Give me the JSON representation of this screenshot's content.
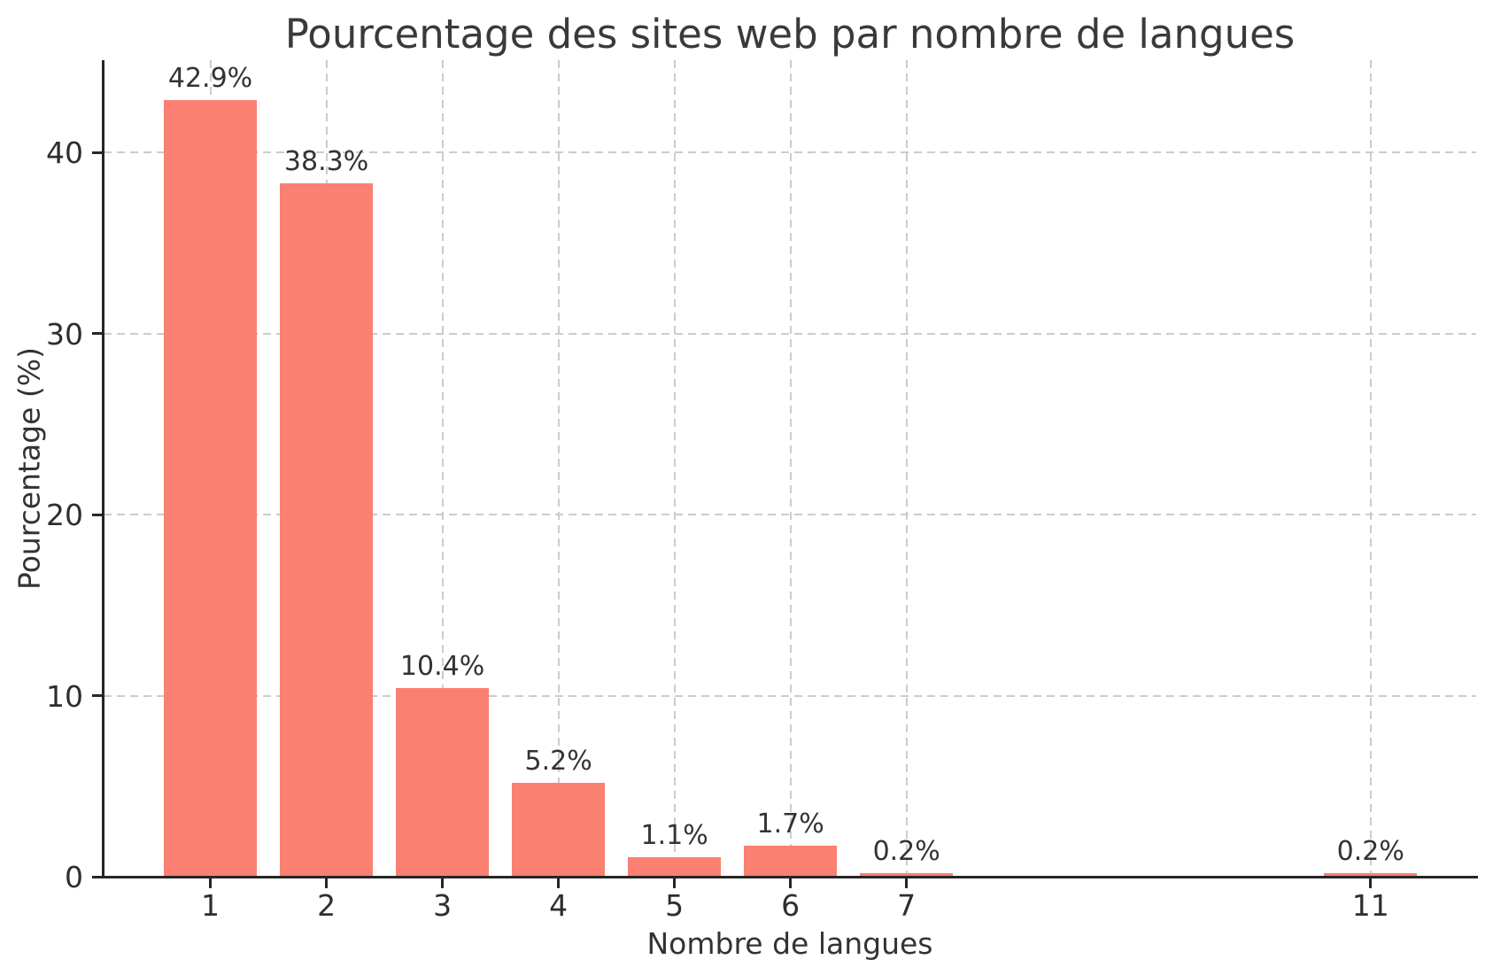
{
  "chart_data": {
    "type": "bar",
    "title": "Pourcentage des sites web par nombre de langues",
    "xlabel": "Nombre de langues",
    "ylabel": "Pourcentage (%)",
    "x": [
      1,
      2,
      3,
      4,
      5,
      6,
      7,
      11
    ],
    "values": [
      42.9,
      38.3,
      10.4,
      5.2,
      1.1,
      1.7,
      0.2,
      0.2
    ],
    "bar_labels": [
      "42.9%",
      "38.3%",
      "10.4%",
      "5.2%",
      "1.1%",
      "1.7%",
      "0.2%",
      "0.2%"
    ],
    "x_tick_labels": [
      "1",
      "2",
      "3",
      "4",
      "5",
      "6",
      "7",
      "11"
    ],
    "y_ticks": [
      0,
      10,
      20,
      30,
      40
    ],
    "y_tick_labels": [
      "0",
      "10",
      "20",
      "30",
      "40"
    ],
    "xlim": [
      0.08,
      11.91
    ],
    "ylim": [
      0,
      45.1
    ],
    "bar_width": 0.8,
    "grid": "dashed",
    "legend": "none",
    "colors": {
      "bar": "#FA8072",
      "grid": "#CCCCCC",
      "spine": "#262626",
      "text": "#333333",
      "background": "#FFFFFF"
    }
  }
}
